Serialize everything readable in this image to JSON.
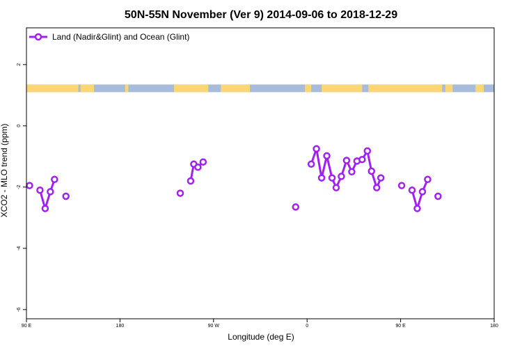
{
  "chart_data": {
    "type": "line",
    "title": "50N-55N November (Ver 9)   2014-09-06 to 2018-12-29",
    "xlabel": "Longitude (deg E)",
    "ylabel": "XCO2 - MLO trend (ppm)",
    "x_ticks": [
      {
        "value": 90,
        "label": "90 E"
      },
      {
        "value": 180,
        "label": "180"
      },
      {
        "value": 270,
        "label": "90 W"
      },
      {
        "value": 360,
        "label": "0"
      },
      {
        "value": 450,
        "label": "90 E"
      },
      {
        "value": 540,
        "label": "180"
      }
    ],
    "y_ticks": [
      {
        "value": 2,
        "label": "2"
      },
      {
        "value": 0,
        "label": "0"
      },
      {
        "value": -2,
        "label": "-2"
      },
      {
        "value": -4,
        "label": "-4"
      },
      {
        "value": -6,
        "label": "-6"
      }
    ],
    "xlim": [
      90,
      540
    ],
    "ylim": [
      -6.3,
      3.2
    ],
    "grid": false,
    "legend_position": "top-left",
    "land_ocean_strip": {
      "y_range": [
        1.1,
        1.35
      ],
      "land_color": "#fbd676",
      "ocean_color": "#a7bcdb",
      "land_segments": [
        [
          90,
          140
        ],
        [
          142,
          155
        ],
        [
          185,
          188
        ],
        [
          232,
          265
        ],
        [
          277,
          305
        ],
        [
          358,
          364
        ],
        [
          374,
          413
        ],
        [
          419,
          490
        ],
        [
          493,
          500
        ],
        [
          522,
          530
        ]
      ]
    },
    "series": [
      {
        "name": "Land (Nadir&Glint) and Ocean (Glint)",
        "color": "#a020f0",
        "segments": [
          [
            [
              93,
              -1.95
            ]
          ],
          [
            [
              103,
              -2.1
            ],
            [
              108,
              -2.7
            ],
            [
              113,
              -2.15
            ],
            [
              117,
              -1.75
            ]
          ],
          [
            [
              128,
              -2.3
            ]
          ],
          [
            [
              238,
              -2.2
            ]
          ],
          [
            [
              248,
              -1.8
            ],
            [
              251,
              -1.25
            ],
            [
              255,
              -1.35
            ],
            [
              260,
              -1.18
            ]
          ],
          [
            [
              349,
              -2.65
            ]
          ],
          [
            [
              364,
              -1.25
            ],
            [
              369,
              -0.75
            ],
            [
              374,
              -1.7
            ],
            [
              379,
              -0.98
            ],
            [
              384,
              -1.7
            ],
            [
              388,
              -2.02
            ],
            [
              393,
              -1.65
            ],
            [
              398,
              -1.13
            ],
            [
              403,
              -1.5
            ],
            [
              408,
              -1.15
            ],
            [
              413,
              -1.1
            ],
            [
              418,
              -0.82
            ],
            [
              422,
              -1.48
            ],
            [
              427,
              -2.02
            ],
            [
              431,
              -1.7
            ]
          ],
          [
            [
              451,
              -1.95
            ]
          ],
          [
            [
              461,
              -2.1
            ],
            [
              466,
              -2.7
            ],
            [
              471,
              -2.15
            ],
            [
              476,
              -1.75
            ]
          ],
          [
            [
              486,
              -2.3
            ]
          ]
        ]
      }
    ]
  }
}
